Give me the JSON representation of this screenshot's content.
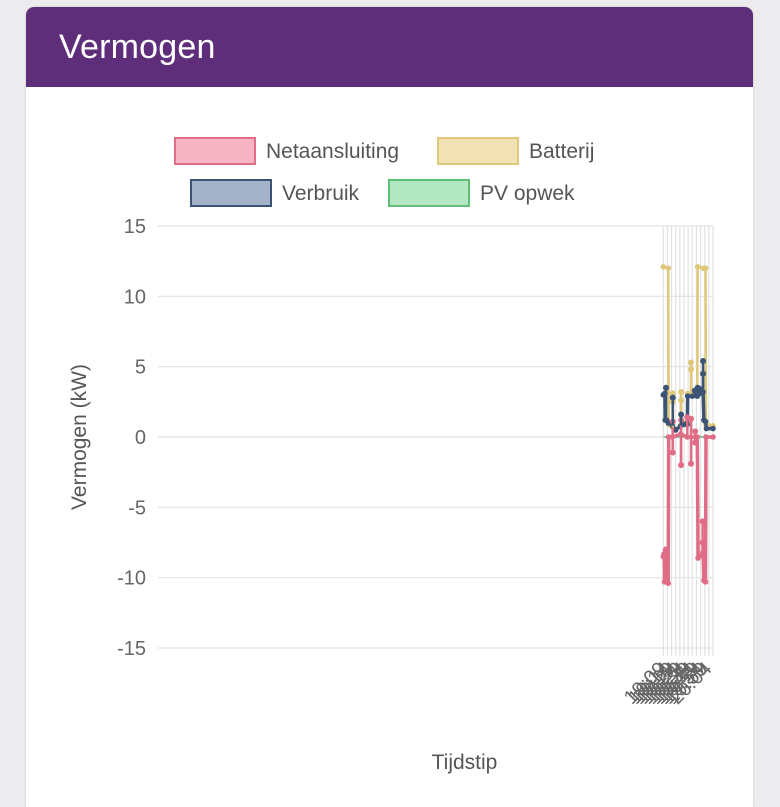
{
  "card": {
    "title": "Vermogen"
  },
  "chart_data": {
    "type": "line",
    "xlabel": "Tijdstip",
    "ylabel": "Vermogen (kW)",
    "ylim": [
      -15,
      15
    ],
    "yticks": [
      15,
      10,
      5,
      0,
      -5,
      -10,
      -15
    ],
    "xticks": [
      "19:09",
      "19:14",
      "19:19",
      "19:24",
      "19:29",
      "19:34",
      "19:39",
      "19:44",
      "19:49",
      "19:54",
      "19:59",
      "20:04"
    ],
    "grid": true,
    "legend_position": "top",
    "series": [
      {
        "name": "Netaansluiting",
        "color": "#e06c86",
        "fill": "#f6b5c4",
        "points": [
          [
            "19:09",
            -8.5
          ],
          [
            "19:10",
            -8.3
          ],
          [
            "19:10.5",
            -10.3
          ],
          [
            "19:12",
            -10.2
          ],
          [
            "19:15",
            -10.4
          ],
          [
            "19:15.5",
            0
          ],
          [
            "19:20",
            0
          ],
          [
            "19:30",
            0.2
          ],
          [
            "19:38",
            0
          ],
          [
            "19:48",
            0
          ],
          [
            "19:50",
            0
          ],
          [
            "19:51",
            -8.6
          ],
          [
            "19:55",
            -8.4
          ],
          [
            "19:57",
            -8.2
          ],
          [
            "19:58",
            -10.2
          ],
          [
            "20:00",
            -10.3
          ],
          [
            "20:00.5",
            0
          ],
          [
            "20:09",
            0
          ]
        ]
      },
      {
        "name": "Batterij",
        "color": "#dfc77c",
        "fill": "#f1e3b3",
        "points": [
          [
            "19:09",
            12.1
          ],
          [
            "19:15",
            12.0
          ],
          [
            "19:15.5",
            0.9
          ],
          [
            "19:20",
            0.7
          ],
          [
            "19:24",
            0.5
          ],
          [
            "19:30",
            0.8
          ],
          [
            "19:34",
            1.0
          ],
          [
            "19:38",
            1.0
          ],
          [
            "19:38.5",
            3.1
          ],
          [
            "19:44",
            3.0
          ],
          [
            "19:50",
            3.0
          ],
          [
            "19:50.5",
            12.1
          ],
          [
            "19:57",
            12.0
          ],
          [
            "20:00",
            12.0
          ],
          [
            "20:00.5",
            0.9
          ],
          [
            "20:04",
            0.8
          ],
          [
            "20:09",
            0.8
          ]
        ]
      },
      {
        "name": "Verbruik",
        "color": "#3b5475",
        "fill": "#a4b3c8",
        "points": [
          [
            "19:09",
            3.0
          ],
          [
            "19:11",
            3.1
          ],
          [
            "19:11.3",
            1.2
          ],
          [
            "19:13",
            1.2
          ],
          [
            "19:15",
            1.0
          ],
          [
            "19:20",
            0.8
          ],
          [
            "19:24",
            0.5
          ],
          [
            "19:30",
            0.8
          ],
          [
            "19:34",
            0.9
          ],
          [
            "19:38",
            0.9
          ],
          [
            "19:38.5",
            2.9
          ],
          [
            "19:44",
            2.9
          ],
          [
            "19:50",
            2.9
          ],
          [
            "19:53",
            3.1
          ],
          [
            "19:57",
            3.2
          ],
          [
            "19:58",
            1.2
          ],
          [
            "20:00",
            1.1
          ],
          [
            "20:01",
            0.6
          ],
          [
            "20:09",
            0.6
          ]
        ]
      },
      {
        "name": "PV opwek",
        "color": "#5fbe77",
        "fill": "#b3e6c2",
        "points": [
          [
            "19:09",
            0
          ],
          [
            "20:09",
            0
          ]
        ]
      }
    ],
    "spikes": [
      {
        "series": "Netaansluiting",
        "x": "19:12",
        "values": [
          -8.0,
          -9.5
        ]
      },
      {
        "series": "Netaansluiting",
        "x": "19:20.5",
        "values": [
          -1.1,
          1.1
        ]
      },
      {
        "series": "Netaansluiting",
        "x": "19:30.5",
        "values": [
          -2.0,
          1.2
        ]
      },
      {
        "series": "Netaansluiting",
        "x": "19:38",
        "values": [
          1.4
        ]
      },
      {
        "series": "Netaansluiting",
        "x": "19:42.5",
        "values": [
          1.3,
          -1.9
        ]
      },
      {
        "series": "Netaansluiting",
        "x": "19:47.5",
        "values": [
          0.4,
          -0.4
        ]
      },
      {
        "series": "Netaansluiting",
        "x": "19:56.5",
        "values": [
          -6.0,
          -7.5
        ]
      },
      {
        "series": "Batterij",
        "x": "19:20.5",
        "values": [
          3.1,
          2.5
        ]
      },
      {
        "series": "Batterij",
        "x": "19:30.5",
        "values": [
          3.2,
          2.6
        ]
      },
      {
        "series": "Batterij",
        "x": "19:42.5",
        "values": [
          5.3,
          4.8
        ]
      },
      {
        "series": "Verbruik",
        "x": "19:12.3",
        "values": [
          3.5
        ]
      },
      {
        "series": "Verbruik",
        "x": "19:20.5",
        "values": [
          2.8
        ]
      },
      {
        "series": "Verbruik",
        "x": "19:30.5",
        "values": [
          1.6
        ]
      },
      {
        "series": "Verbruik",
        "x": "19:47",
        "values": [
          3.3
        ]
      },
      {
        "series": "Verbruik",
        "x": "19:50.5",
        "values": [
          3.5
        ]
      },
      {
        "series": "Verbruik",
        "x": "19:53.5",
        "values": [
          3.4
        ]
      },
      {
        "series": "Verbruik",
        "x": "19:57",
        "values": [
          5.4,
          4.5
        ]
      }
    ]
  }
}
